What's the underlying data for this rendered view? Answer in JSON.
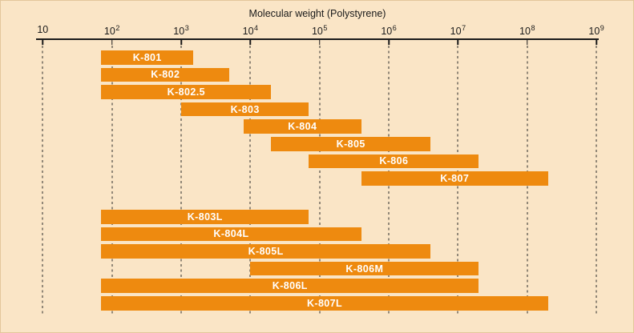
{
  "chart_data": {
    "type": "bar",
    "orientation": "horizontal-range",
    "title": "Molecular weight (Polystyrene)",
    "x_scale": "log10",
    "x_min": 10,
    "x_max": 1000000000,
    "grid": "dashed-vertical",
    "x_ticks": [
      {
        "base": "10",
        "sup": "",
        "exp": 1
      },
      {
        "base": "10",
        "sup": "2",
        "exp": 2
      },
      {
        "base": "10",
        "sup": "3",
        "exp": 3
      },
      {
        "base": "10",
        "sup": "4",
        "exp": 4
      },
      {
        "base": "10",
        "sup": "5",
        "exp": 5
      },
      {
        "base": "10",
        "sup": "6",
        "exp": 6
      },
      {
        "base": "10",
        "sup": "7",
        "exp": 7
      },
      {
        "base": "10",
        "sup": "8",
        "exp": 8
      },
      {
        "base": "10",
        "sup": "9",
        "exp": 9
      }
    ],
    "groups": [
      {
        "name": "standard-columns",
        "bars": [
          {
            "label": "K-801",
            "min": 70,
            "max": 1500
          },
          {
            "label": "K-802",
            "min": 70,
            "max": 5000
          },
          {
            "label": "K-802.5",
            "min": 70,
            "max": 20000
          },
          {
            "label": "K-803",
            "min": 1000,
            "max": 70000
          },
          {
            "label": "K-804",
            "min": 8000,
            "max": 400000
          },
          {
            "label": "K-805",
            "min": 20000,
            "max": 4000000
          },
          {
            "label": "K-806",
            "min": 70000,
            "max": 20000000
          },
          {
            "label": "K-807",
            "min": 400000,
            "max": 200000000
          }
        ]
      },
      {
        "name": "linear-columns",
        "bars": [
          {
            "label": "K-803L",
            "min": 70,
            "max": 70000
          },
          {
            "label": "K-804L",
            "min": 70,
            "max": 400000
          },
          {
            "label": "K-805L",
            "min": 70,
            "max": 4000000
          },
          {
            "label": "K-806M",
            "min": 10000,
            "max": 20000000
          },
          {
            "label": "K-806L",
            "min": 70,
            "max": 20000000
          },
          {
            "label": "K-807L",
            "min": 70,
            "max": 200000000
          }
        ]
      }
    ],
    "colors": {
      "background": "#fae5c6",
      "bar": "#ee8a0f",
      "bar_label": "#ffffff",
      "axis": "#1a1a1a",
      "grid": "#2a2a2a",
      "border": "#e3c69c"
    }
  }
}
